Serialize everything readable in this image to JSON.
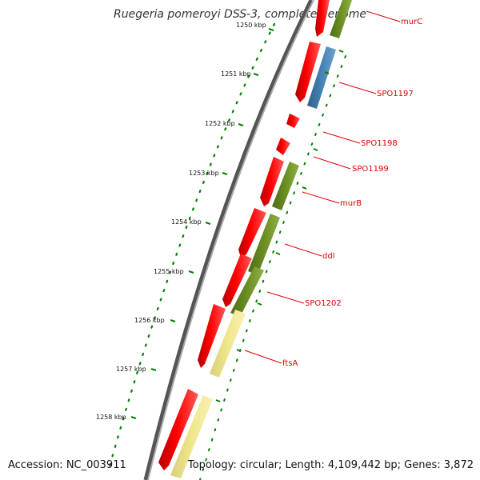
{
  "title": "Ruegeria pomeroyi DSS-3, complete genome",
  "accession": "Accession: NC_003911",
  "summary": "Topology: circular; Length: 4,109,442 bp; Genes: 3,872",
  "kbp_ticks": [
    {
      "label": "1250 kbp"
    },
    {
      "label": "1251 kbp"
    },
    {
      "label": "1252 kbp"
    },
    {
      "label": "1253 kbp"
    },
    {
      "label": "1254 kbp"
    },
    {
      "label": "1255 kbp"
    },
    {
      "label": "1256 kbp"
    },
    {
      "label": "1257 kbp"
    },
    {
      "label": "1258 kbp"
    }
  ],
  "gene_labels": [
    {
      "label": "murC"
    },
    {
      "label": "SPO1197"
    },
    {
      "label": "SPO1198"
    },
    {
      "label": "SPO1199"
    },
    {
      "label": "murB"
    },
    {
      "label": "ddl"
    },
    {
      "label": "SPO1202"
    },
    {
      "label": "ftsA"
    }
  ],
  "colors": {
    "cds": "#ff0000",
    "category_green": "#6b8e23",
    "category_blue": "#4682b4",
    "category_yellow": "#f0e68c",
    "tick": "#008000",
    "backbone": "#808080",
    "label": "#e00000"
  }
}
